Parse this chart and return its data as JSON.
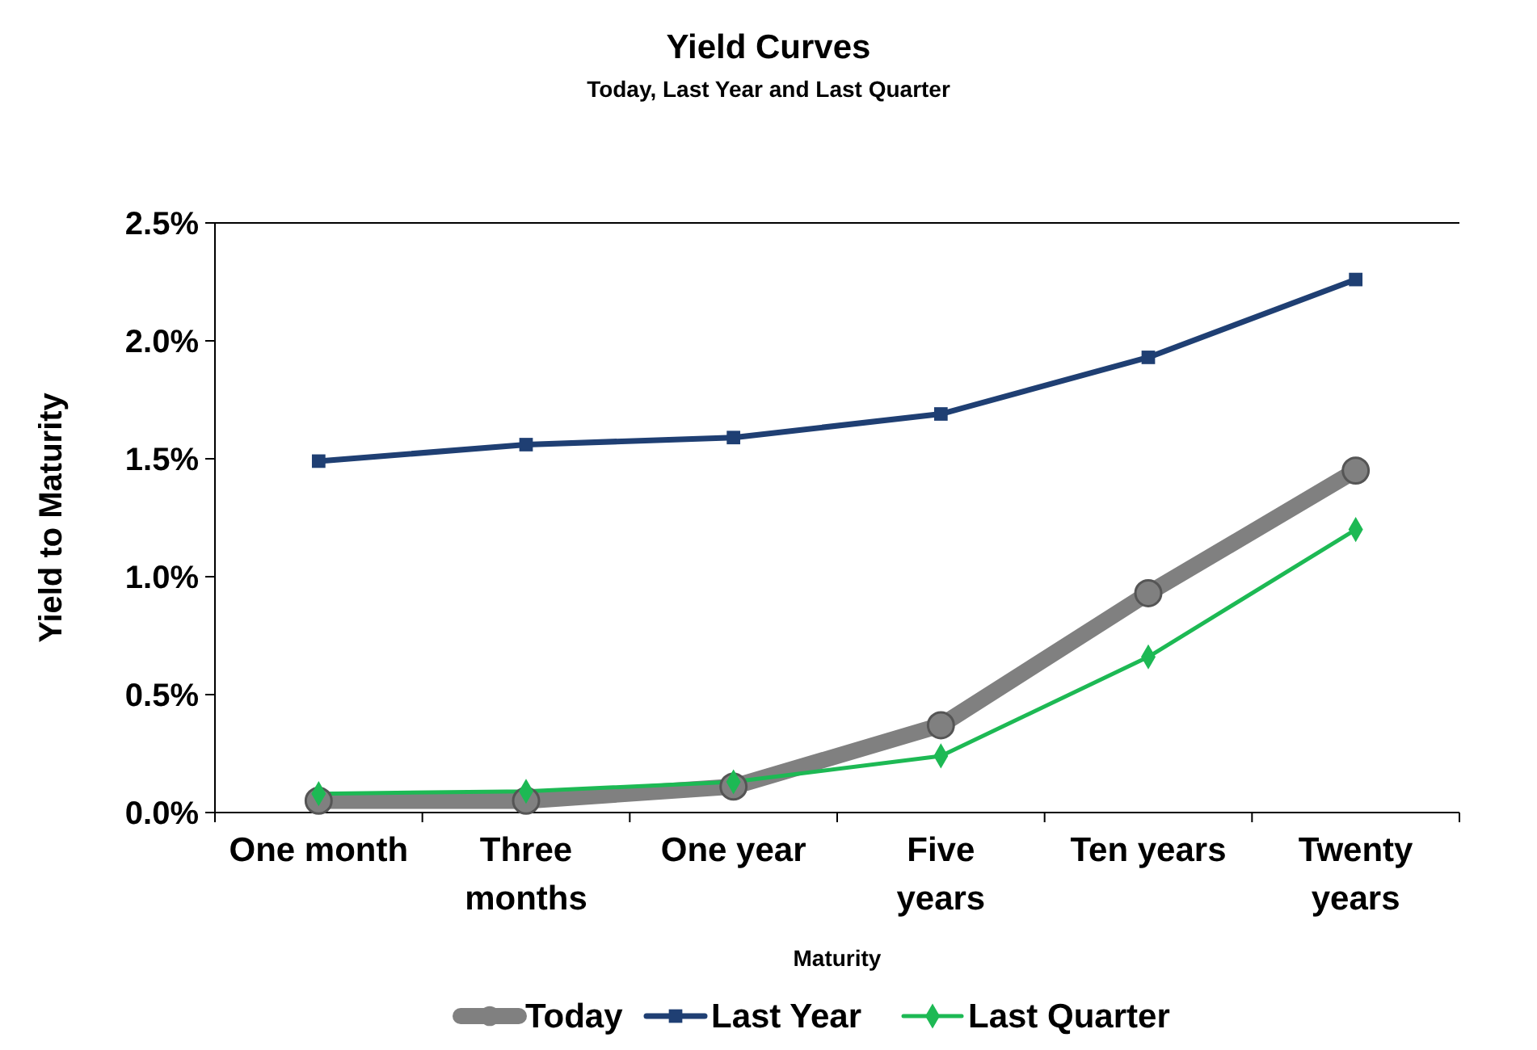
{
  "chart_data": {
    "type": "line",
    "title": "Yield Curves",
    "subtitle": "Today, Last Year and Last Quarter",
    "xlabel": "Maturity",
    "ylabel": "Yield to Maturity",
    "categories": [
      "One month",
      "Three months",
      "One year",
      "Five years",
      "Ten years",
      "Twenty years"
    ],
    "ylim": [
      0,
      2.5
    ],
    "yticks": [
      {
        "value": 0,
        "label": "0.0%"
      },
      {
        "value": 0.5,
        "label": "0.5%"
      },
      {
        "value": 1,
        "label": "1.0%"
      },
      {
        "value": 1.5,
        "label": "1.5%"
      },
      {
        "value": 2,
        "label": "2.0%"
      },
      {
        "value": 2.5,
        "label": "2.5%"
      }
    ],
    "grid": false,
    "legend": "bottom",
    "series": [
      {
        "name": "Today",
        "color": "#808080",
        "marker": "circle",
        "values": [
          0.05,
          0.05,
          0.11,
          0.37,
          0.93,
          1.45
        ]
      },
      {
        "name": "Last Year",
        "color": "#1f3f73",
        "marker": "square",
        "values": [
          1.49,
          1.56,
          1.59,
          1.69,
          1.93,
          2.26
        ]
      },
      {
        "name": "Last Quarter",
        "color": "#1db954",
        "marker": "diamond",
        "values": [
          0.08,
          0.09,
          0.13,
          0.24,
          0.66,
          1.2
        ]
      }
    ]
  }
}
